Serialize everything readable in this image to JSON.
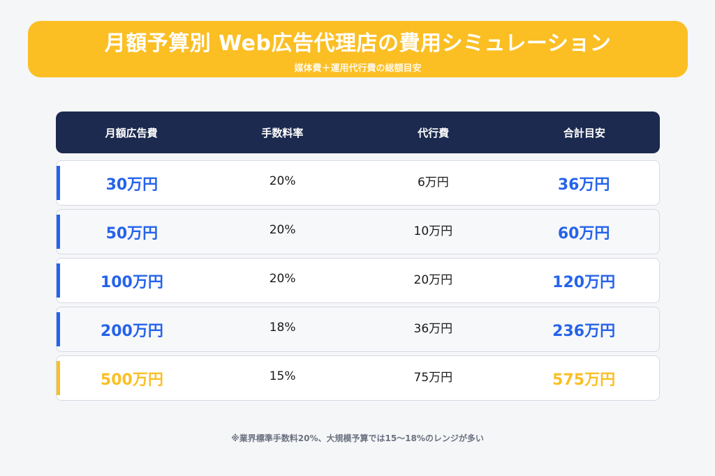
{
  "header": {
    "title": "月額予算別 Web広告代理店の費用シミュレーション",
    "subtitle": "媒体費＋運用代行費の総額目安"
  },
  "chart_data": {
    "type": "table",
    "columns": [
      "月額広告費",
      "手数料率",
      "代行費",
      "合計目安"
    ],
    "rows": [
      {
        "budget": "30万円",
        "rate": "20%",
        "fee": "6万円",
        "total": "36万円",
        "highlight": false
      },
      {
        "budget": "50万円",
        "rate": "20%",
        "fee": "10万円",
        "total": "60万円",
        "highlight": false
      },
      {
        "budget": "100万円",
        "rate": "20%",
        "fee": "20万円",
        "total": "120万円",
        "highlight": false
      },
      {
        "budget": "200万円",
        "rate": "18%",
        "fee": "36万円",
        "total": "236万円",
        "highlight": false
      },
      {
        "budget": "500万円",
        "rate": "15%",
        "fee": "75万円",
        "total": "575万円",
        "highlight": true
      }
    ]
  },
  "colors": {
    "accent_yellow": "#fbbf24",
    "accent_blue": "#2563eb",
    "header_navy": "#1c2a4f"
  },
  "footnote": "※業界標準手数料20%、大規模予算では15〜18%のレンジが多い"
}
